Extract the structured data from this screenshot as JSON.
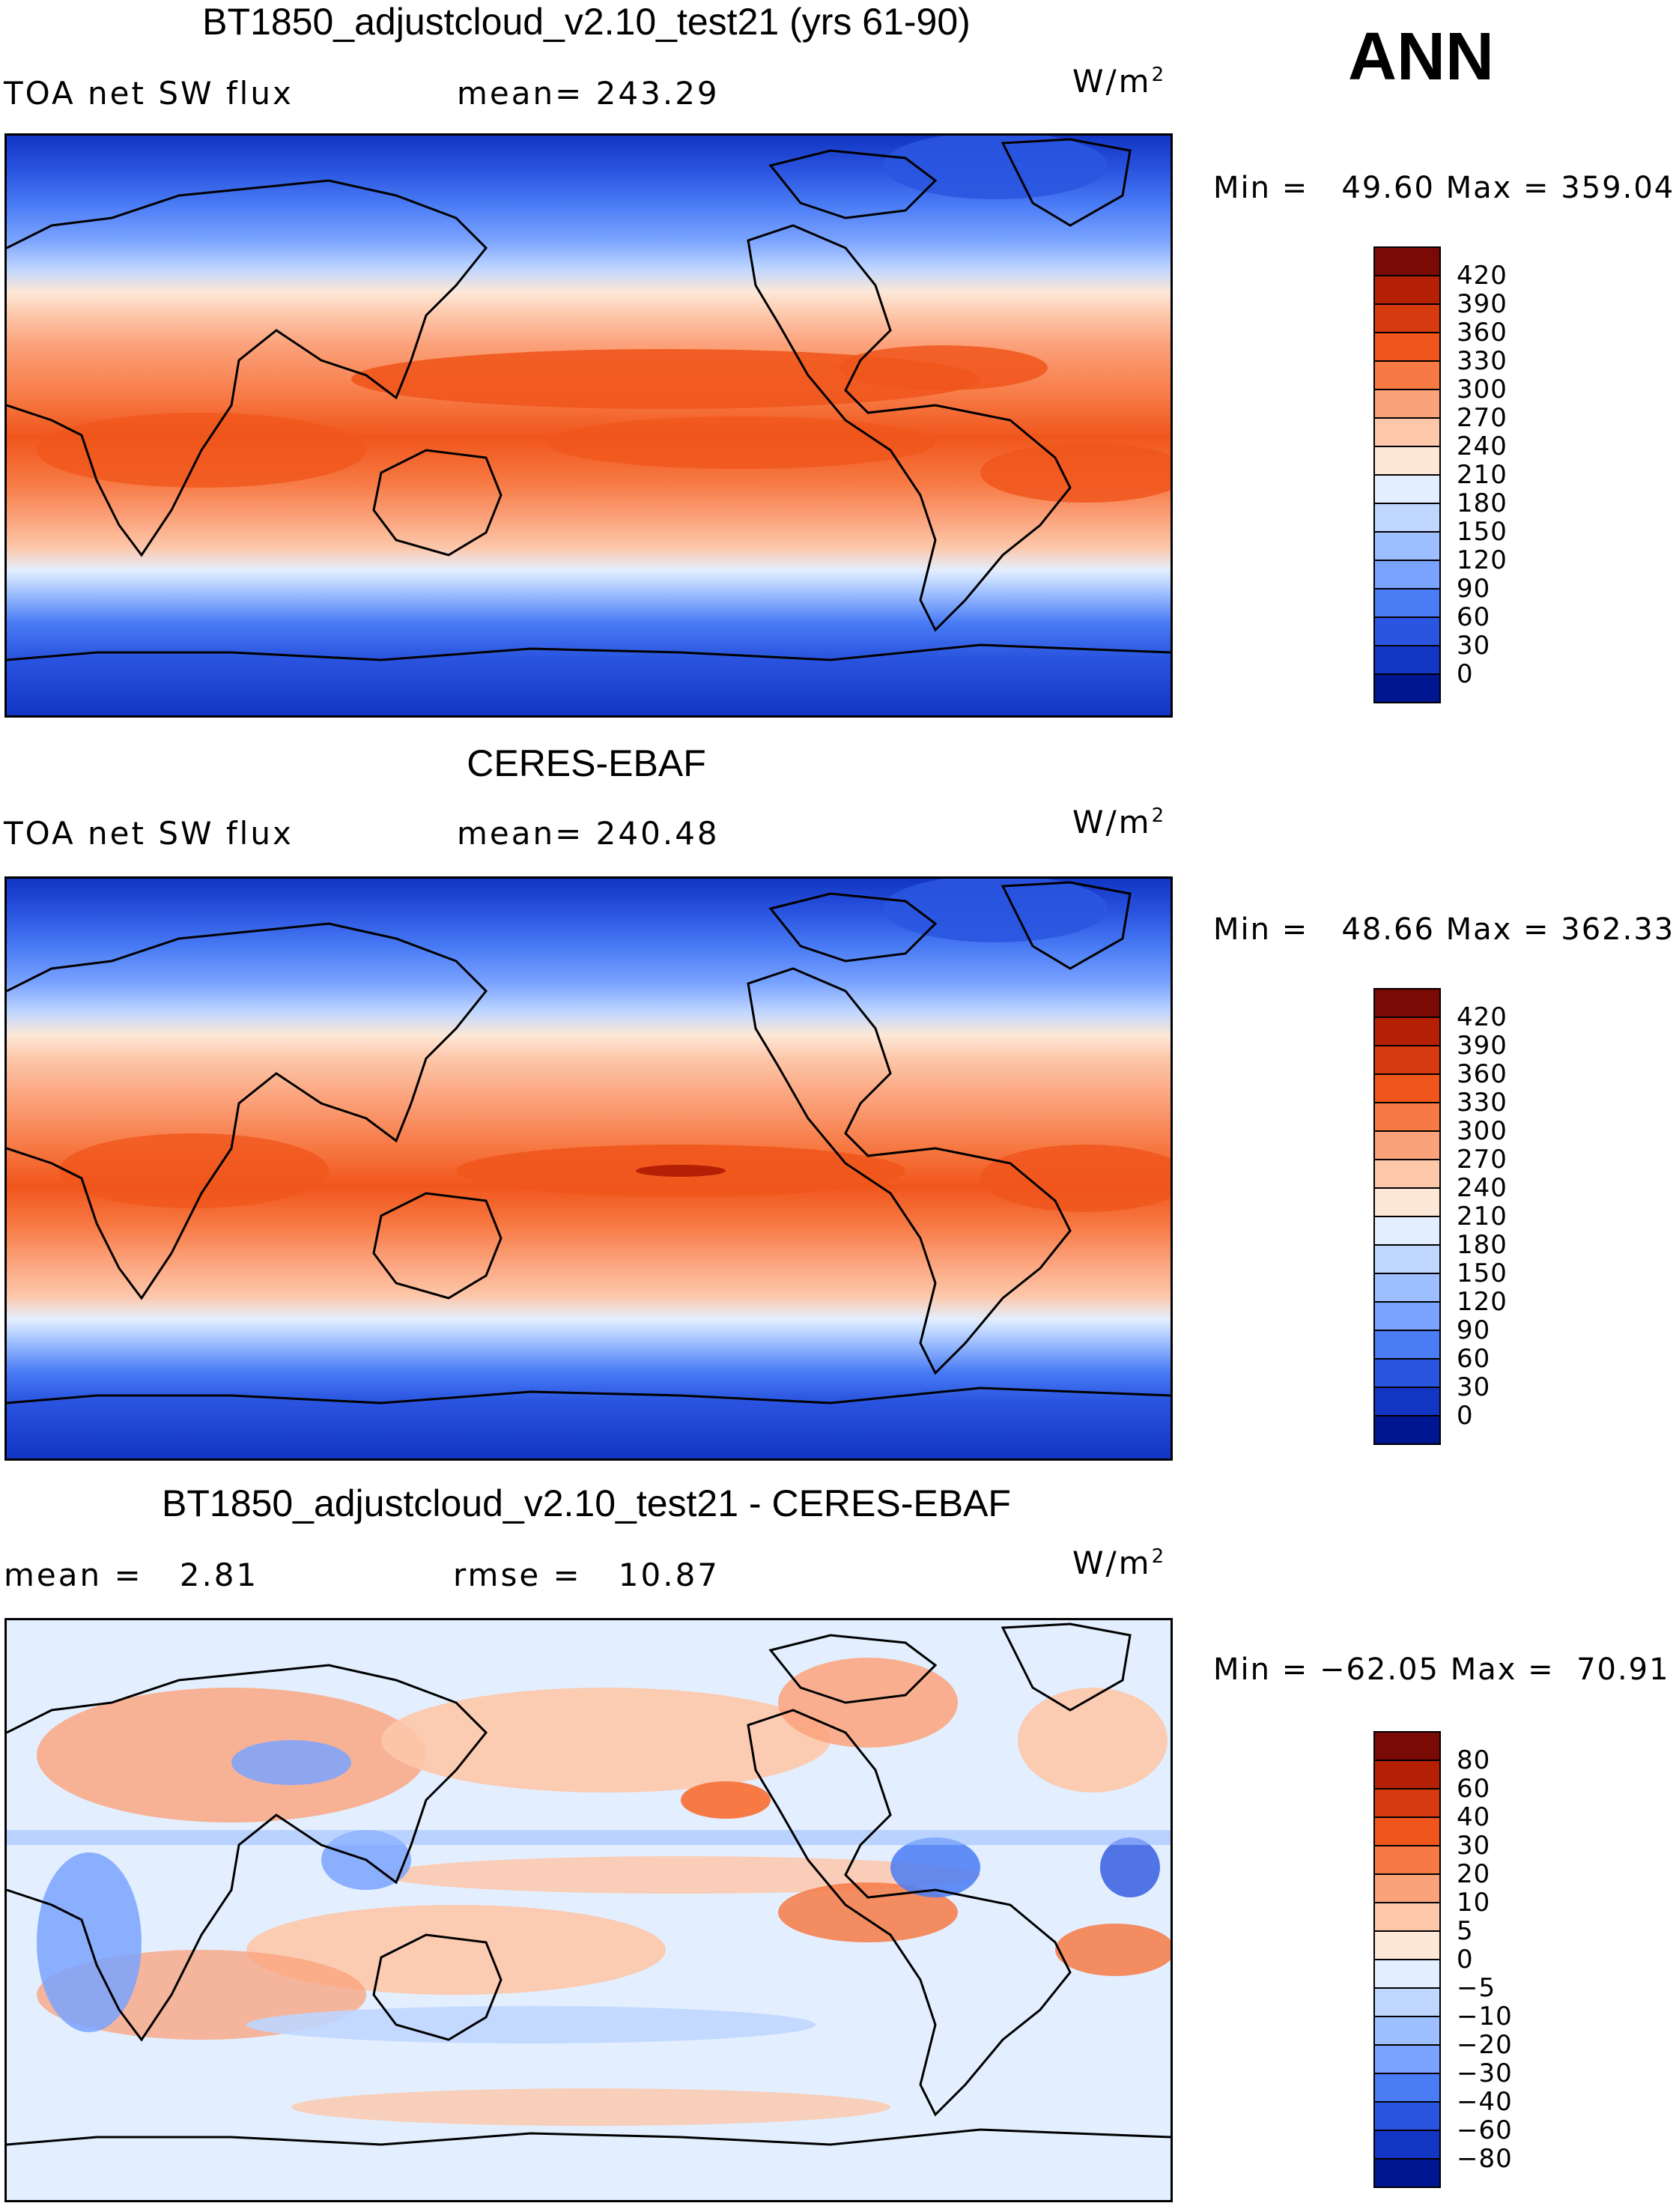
{
  "season": "ANN",
  "units_base": "W/m",
  "units_exp": "2",
  "min_label": "Min =",
  "max_label": "Max =",
  "panels": [
    {
      "title": "BT1850_adjustcloud_v2.10_test21 (yrs 61-90)",
      "left_label": "TOA net SW flux",
      "stat_label": "mean=",
      "stat_value": "243.29",
      "min": "49.60",
      "max": "359.04",
      "kind": "abs"
    },
    {
      "title": "CERES-EBAF",
      "left_label": "TOA net SW flux",
      "stat_label": "mean=",
      "stat_value": "240.48",
      "min": "48.66",
      "max": "362.33",
      "kind": "abs"
    },
    {
      "title": "BT1850_adjustcloud_v2.10_test21 - CERES-EBAF",
      "left_label": "mean =",
      "left_value": "2.81",
      "stat_label": "rmse =",
      "stat_value": "10.87",
      "min": "−62.05",
      "max": "70.91",
      "kind": "diff"
    }
  ],
  "colorbars": {
    "abs": {
      "levels": [
        "420",
        "390",
        "360",
        "330",
        "300",
        "270",
        "240",
        "210",
        "180",
        "150",
        "120",
        "90",
        "60",
        "30",
        "0"
      ],
      "colors": [
        "#7a0a05",
        "#b52005",
        "#d63b0f",
        "#f0561c",
        "#f77a45",
        "#fba27b",
        "#fdc7aa",
        "#fde8d7",
        "#e3efff",
        "#bfd6ff",
        "#9dbeff",
        "#7aa3ff",
        "#4a7cf5",
        "#2a55e0",
        "#1235c4",
        "#001590"
      ]
    },
    "diff": {
      "levels": [
        "80",
        "60",
        "40",
        "30",
        "20",
        "10",
        "5",
        "0",
        "−5",
        "−10",
        "−20",
        "−30",
        "−40",
        "−60",
        "−80"
      ],
      "colors": [
        "#7a0a05",
        "#b52005",
        "#d63b0f",
        "#f0561c",
        "#f77a45",
        "#fba27b",
        "#fdc7aa",
        "#fde8d7",
        "#e3efff",
        "#bfd6ff",
        "#9dbeff",
        "#7aa3ff",
        "#4a7cf5",
        "#2a55e0",
        "#1235c4",
        "#001590"
      ]
    }
  }
}
